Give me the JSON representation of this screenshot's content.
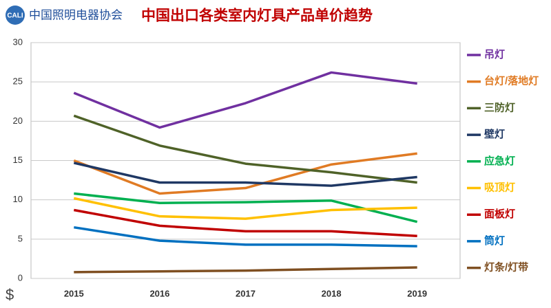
{
  "logo": {
    "mark": "CALI",
    "org": "中国照明电器协会"
  },
  "chart_data": {
    "type": "line",
    "title": "中国出口各类室内灯具产品单价趋势",
    "y_label": "$",
    "categories": [
      "2015",
      "2016",
      "2017",
      "2018",
      "2019"
    ],
    "ylim": [
      0,
      30
    ],
    "yticks": [
      0,
      5,
      10,
      15,
      20,
      25,
      30
    ],
    "grid": true,
    "legend": "right",
    "series": [
      {
        "name": "吊灯",
        "color": "#7030a0",
        "values": [
          23.6,
          19.2,
          22.3,
          26.2,
          24.8
        ]
      },
      {
        "name": "台灯/落地灯",
        "color": "#e07b24",
        "values": [
          15.0,
          10.8,
          11.5,
          14.5,
          15.9
        ]
      },
      {
        "name": "三防灯",
        "color": "#4f6228",
        "values": [
          20.7,
          16.9,
          14.6,
          13.5,
          12.2
        ]
      },
      {
        "name": "壁灯",
        "color": "#1f3864",
        "values": [
          14.7,
          12.2,
          12.2,
          11.8,
          12.9
        ]
      },
      {
        "name": "应急灯",
        "color": "#00b050",
        "values": [
          10.8,
          9.6,
          9.7,
          9.9,
          7.2
        ]
      },
      {
        "name": "吸顶灯",
        "color": "#ffc000",
        "values": [
          10.2,
          7.9,
          7.6,
          8.7,
          9.0
        ]
      },
      {
        "name": "面板灯",
        "color": "#c00000",
        "values": [
          8.7,
          6.7,
          6.0,
          6.0,
          5.4
        ]
      },
      {
        "name": "筒灯",
        "color": "#0070c0",
        "values": [
          6.5,
          4.8,
          4.3,
          4.3,
          4.1
        ]
      },
      {
        "name": "灯条/灯带",
        "color": "#7f4f21",
        "values": [
          0.8,
          0.9,
          1.0,
          1.2,
          1.4
        ]
      }
    ]
  }
}
